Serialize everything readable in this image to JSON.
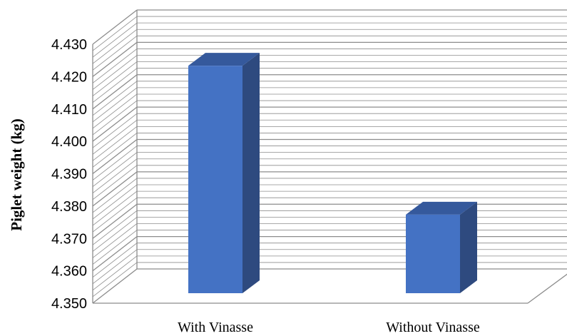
{
  "chart_data": {
    "type": "bar",
    "categories": [
      "With Vinasse",
      "Without Vinasse"
    ],
    "values": [
      4.426,
      4.38
    ],
    "title": "",
    "xlabel": "",
    "ylabel": "Piglet weight (kg)",
    "ylim": [
      4.35,
      4.43
    ],
    "yticks": [
      "4.350",
      "4.360",
      "4.370",
      "4.380",
      "4.390",
      "4.400",
      "4.410",
      "4.420",
      "4.430"
    ],
    "grid": true,
    "style": "3d-column",
    "colors": {
      "bar_front": "#4472c4",
      "bar_side": "#2e4a7f",
      "bar_top": "#35599c",
      "grid": "#8c8c8c"
    }
  }
}
